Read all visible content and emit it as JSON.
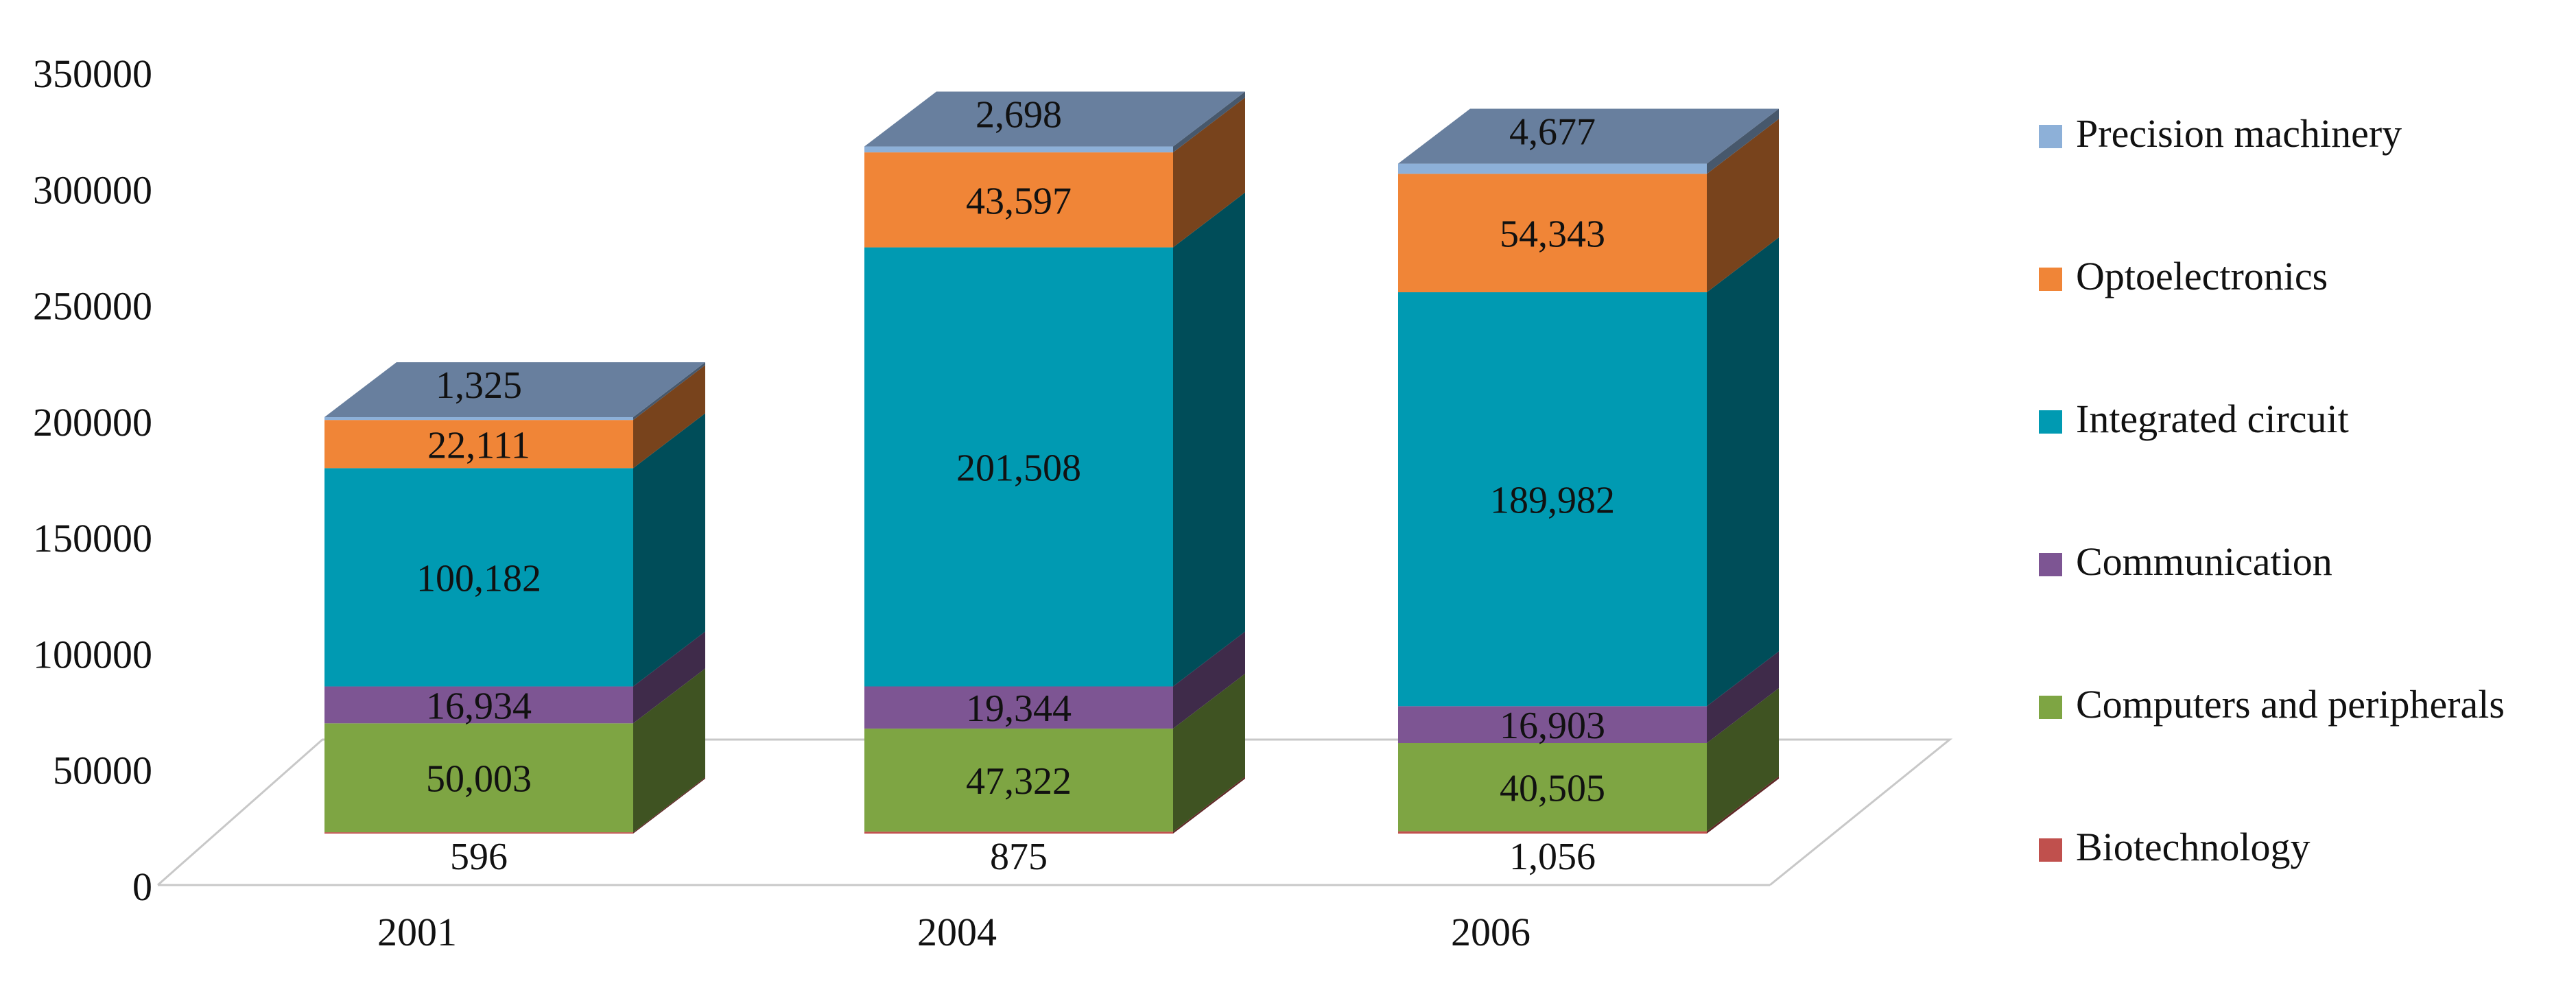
{
  "chart_data": {
    "type": "bar",
    "stacked": true,
    "three_d": true,
    "title": "",
    "xlabel": "",
    "ylabel": "",
    "ylim": [
      0,
      350000
    ],
    "y_ticks": [
      "0",
      "50000",
      "100000",
      "150000",
      "200000",
      "250000",
      "300000",
      "350000"
    ],
    "categories": [
      "2001",
      "2004",
      "2006"
    ],
    "grid": false,
    "legend_position": "right",
    "series": [
      {
        "name": "Biotechnology",
        "color": "#C0504D",
        "values": [
          596,
          875,
          1056
        ],
        "labels": [
          "596",
          "875",
          "1,056"
        ]
      },
      {
        "name": "Computers and peripherals",
        "color": "#7EA543",
        "values": [
          50003,
          47322,
          40505
        ],
        "labels": [
          "50,003",
          "47,322",
          "40,505"
        ]
      },
      {
        "name": "Communication",
        "color": "#7D5593",
        "values": [
          16934,
          19344,
          16903
        ],
        "labels": [
          "16,934",
          "19,344",
          "16,903"
        ]
      },
      {
        "name": "Integrated circuit",
        "color": "#009AB2",
        "values": [
          100182,
          201508,
          189982
        ],
        "labels": [
          "100,182",
          "201,508",
          "189,982"
        ]
      },
      {
        "name": "Optoelectronics",
        "color": "#F08537",
        "values": [
          22111,
          43597,
          54343
        ],
        "labels": [
          "22,111",
          "43,597",
          "54,343"
        ]
      },
      {
        "name": "Precision machinery",
        "color": "#8DB0D8",
        "values": [
          1325,
          2698,
          4677
        ],
        "labels": [
          "1,325",
          "2,698",
          "4,677"
        ]
      }
    ],
    "legend_order": [
      "Precision machinery",
      "Optoelectronics",
      "Integrated circuit",
      "Communication",
      "Computers and peripherals",
      "Biotechnology"
    ],
    "top_face_color": "#687F9E"
  }
}
